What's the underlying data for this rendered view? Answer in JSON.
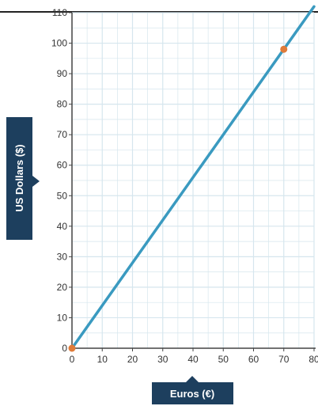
{
  "chart_data": {
    "type": "line",
    "xlabel": "Euros (€)",
    "ylabel": "US Dollars ($)",
    "xlim": [
      0,
      80
    ],
    "ylim": [
      0,
      110
    ],
    "x_ticks": [
      "0",
      "10",
      "20",
      "30",
      "40",
      "50",
      "60",
      "70",
      "80"
    ],
    "y_ticks": [
      "0",
      "10",
      "20",
      "30",
      "40",
      "50",
      "60",
      "70",
      "80",
      "90",
      "100",
      "110"
    ],
    "grid": true,
    "series": [
      {
        "x": [
          0,
          80
        ],
        "y": [
          0,
          112
        ],
        "color": "#3a9ac0"
      }
    ],
    "points": [
      {
        "x": 0,
        "y": 0,
        "color": "#e07b39"
      },
      {
        "x": 70,
        "y": 98,
        "color": "#e07b39"
      }
    ]
  },
  "colors": {
    "axis_badge": "#1d3f5e",
    "grid": "#d6e6ee",
    "axis": "#444444"
  }
}
